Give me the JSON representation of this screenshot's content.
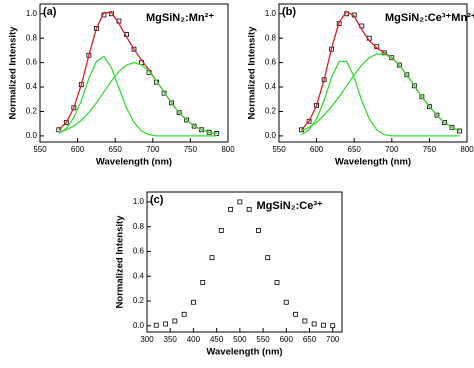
{
  "chart_data": [
    {
      "type": "line",
      "label": "(a)",
      "title": "MgSiN₂:Mn²⁺",
      "xlabel": "Wavelength (nm)",
      "ylabel": "Normalized Intensity",
      "x": [
        575,
        585,
        595,
        605,
        615,
        625,
        635,
        645,
        655,
        665,
        675,
        685,
        695,
        705,
        715,
        725,
        735,
        745,
        755,
        765,
        775,
        785
      ],
      "series": [
        {
          "color": "#000000",
          "marker": "square",
          "values": [
            0.05,
            0.11,
            0.23,
            0.42,
            0.66,
            0.88,
            0.99,
            1.0,
            0.94,
            0.83,
            0.71,
            0.6,
            0.52,
            0.44,
            0.35,
            0.27,
            0.19,
            0.13,
            0.08,
            0.05,
            0.03,
            0.02
          ]
        },
        {
          "color": "#e02020",
          "values": [
            0.05,
            0.11,
            0.23,
            0.42,
            0.66,
            0.88,
            1.01,
            1.01,
            0.92,
            0.81,
            0.71,
            0.62,
            0.54,
            0.45,
            0.36,
            0.27,
            0.19,
            0.13,
            0.08,
            0.05,
            0.03,
            0.02
          ]
        },
        {
          "color": "#33dd33",
          "values": [
            0.02,
            0.06,
            0.15,
            0.29,
            0.47,
            0.61,
            0.65,
            0.56,
            0.39,
            0.23,
            0.11,
            0.04,
            0.01,
            0,
            0,
            0,
            0,
            0,
            0,
            0,
            0,
            0
          ]
        },
        {
          "color": "#33dd33",
          "values": [
            0.03,
            0.05,
            0.08,
            0.13,
            0.19,
            0.27,
            0.36,
            0.45,
            0.53,
            0.58,
            0.6,
            0.58,
            0.53,
            0.45,
            0.36,
            0.27,
            0.19,
            0.13,
            0.08,
            0.05,
            0.03,
            0.02
          ]
        }
      ],
      "xlim": [
        550,
        800
      ],
      "xticks": [
        550,
        600,
        650,
        700,
        750,
        800
      ],
      "ylim": [
        -0.05,
        1.08
      ],
      "yticks": [
        {
          "value": 0,
          "label": "0.0"
        },
        0.2,
        0.4,
        0.6,
        0.8,
        {
          "value": 1,
          "label": "1.0"
        }
      ]
    },
    {
      "type": "line",
      "label": "(b)",
      "title": "MgSiN₂:Ce³⁺Mn²⁺",
      "xlabel": "Wavelength (nm)",
      "ylabel": "Normalized Intensity",
      "x": [
        580,
        590,
        600,
        610,
        620,
        630,
        640,
        650,
        660,
        670,
        680,
        690,
        700,
        710,
        720,
        730,
        740,
        750,
        760,
        770,
        780,
        790
      ],
      "series": [
        {
          "color": "#000000",
          "marker": "square",
          "values": [
            0.05,
            0.12,
            0.25,
            0.46,
            0.71,
            0.92,
            1.0,
            0.99,
            0.9,
            0.8,
            0.73,
            0.68,
            0.64,
            0.58,
            0.5,
            0.41,
            0.32,
            0.24,
            0.17,
            0.11,
            0.07,
            0.04
          ]
        },
        {
          "color": "#e02020",
          "values": [
            0.05,
            0.12,
            0.25,
            0.46,
            0.72,
            0.93,
            1.02,
            0.98,
            0.87,
            0.78,
            0.72,
            0.68,
            0.64,
            0.58,
            0.5,
            0.41,
            0.32,
            0.24,
            0.17,
            0.11,
            0.07,
            0.04
          ]
        },
        {
          "color": "#33dd33",
          "values": [
            0.01,
            0.05,
            0.14,
            0.29,
            0.48,
            0.61,
            0.61,
            0.48,
            0.29,
            0.14,
            0.05,
            0.01,
            0,
            0,
            0,
            0,
            0,
            0,
            0,
            0,
            0,
            0
          ]
        },
        {
          "color": "#33dd33",
          "values": [
            0.04,
            0.07,
            0.11,
            0.17,
            0.24,
            0.32,
            0.41,
            0.5,
            0.58,
            0.64,
            0.67,
            0.67,
            0.64,
            0.58,
            0.5,
            0.41,
            0.32,
            0.24,
            0.17,
            0.11,
            0.07,
            0.04
          ]
        }
      ],
      "xlim": [
        550,
        800
      ],
      "xticks": [
        550,
        600,
        650,
        700,
        750,
        800
      ],
      "ylim": [
        -0.05,
        1.08
      ],
      "yticks": [
        {
          "value": 0,
          "label": "0.0"
        },
        0.2,
        0.4,
        0.6,
        0.8,
        {
          "value": 1,
          "label": "1.0"
        }
      ]
    },
    {
      "type": "line",
      "label": "(c)",
      "title": "MgSiN₂:Ce³⁺",
      "xlabel": "Wavelength (nm)",
      "ylabel": "Normalized Intensity",
      "x": [
        320,
        340,
        360,
        380,
        400,
        420,
        440,
        460,
        480,
        500,
        520,
        540,
        560,
        580,
        600,
        620,
        640,
        660,
        680,
        700
      ],
      "series": [
        {
          "color": "#000000",
          "marker": "square",
          "values": [
            0.005,
            0.015,
            0.039,
            0.093,
            0.19,
            0.35,
            0.55,
            0.77,
            0.94,
            1.0,
            0.94,
            0.77,
            0.55,
            0.35,
            0.19,
            0.093,
            0.039,
            0.015,
            0.005,
            0.001
          ]
        }
      ],
      "xlim": [
        300,
        720
      ],
      "xticks": [
        300,
        350,
        400,
        450,
        500,
        550,
        600,
        650,
        700
      ],
      "ylim": [
        -0.05,
        1.08
      ],
      "yticks": [
        {
          "value": 0,
          "label": "0.0"
        },
        0.2,
        0.4,
        0.6,
        0.8,
        {
          "value": 1,
          "label": "1.0"
        }
      ]
    }
  ]
}
